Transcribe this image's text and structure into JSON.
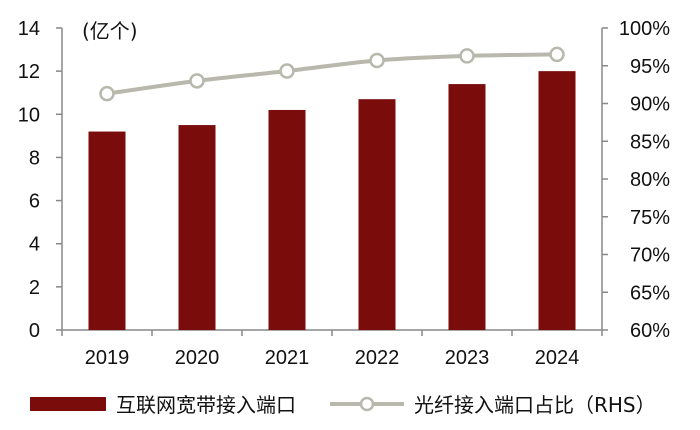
{
  "chart_data": {
    "type": "bar",
    "categories": [
      "2019",
      "2020",
      "2021",
      "2022",
      "2023",
      "2024"
    ],
    "left_axis": {
      "unit_label": "(亿个)",
      "ylim": [
        0,
        14
      ],
      "ticks": [
        "0",
        "2",
        "4",
        "6",
        "8",
        "10",
        "12",
        "14"
      ]
    },
    "right_axis": {
      "ylim": [
        60,
        100
      ],
      "ticks": [
        "60%",
        "65%",
        "70%",
        "75%",
        "80%",
        "85%",
        "90%",
        "95%",
        "100%"
      ]
    },
    "series": [
      {
        "name": "互联网宽带接入端口",
        "type": "bar",
        "axis": "left",
        "color": "#7a0c0c",
        "values": [
          9.2,
          9.5,
          10.2,
          10.7,
          11.4,
          12.0
        ]
      },
      {
        "name": "光纤接入端口占比（RHS）",
        "type": "line",
        "axis": "right",
        "color": "#b8b8ac",
        "values": [
          91.3,
          93.0,
          94.3,
          95.7,
          96.3,
          96.5
        ]
      }
    ],
    "grid": false,
    "legend_position": "bottom"
  }
}
